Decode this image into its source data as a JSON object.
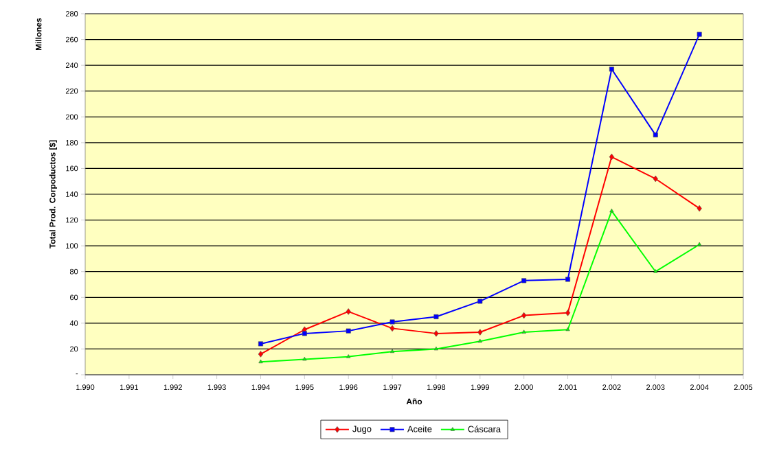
{
  "chart_data": {
    "type": "line",
    "xlabel": "Año",
    "ylabel": "Total Prod. Corpoductos [$]",
    "annotations": [
      "Millones"
    ],
    "x": [
      1994,
      1995,
      1996,
      1997,
      1998,
      1999,
      2000,
      2001,
      2002,
      2003,
      2004
    ],
    "series": [
      {
        "name": "Jugo",
        "color": "#ff0000",
        "marker": "diamond",
        "values": [
          16,
          35,
          49,
          36,
          32,
          33,
          46,
          48,
          169,
          152,
          129
        ]
      },
      {
        "name": "Aceite",
        "color": "#0000ff",
        "marker": "square",
        "values": [
          24,
          32,
          34,
          41,
          45,
          57,
          73,
          74,
          237,
          186,
          264
        ]
      },
      {
        "name": "Cáscara",
        "color": "#00ff00",
        "marker": "triangle",
        "values": [
          10,
          12,
          14,
          18,
          20,
          26,
          33,
          35,
          127,
          80,
          101
        ]
      }
    ],
    "xlim": [
      1990,
      2005
    ],
    "xticks": [
      {
        "value": 1990,
        "label": "1.990"
      },
      {
        "value": 1991,
        "label": "1.991"
      },
      {
        "value": 1992,
        "label": "1.992"
      },
      {
        "value": 1993,
        "label": "1.993"
      },
      {
        "value": 1994,
        "label": "1.994"
      },
      {
        "value": 1995,
        "label": "1.995"
      },
      {
        "value": 1996,
        "label": "1.996"
      },
      {
        "value": 1997,
        "label": "1.997"
      },
      {
        "value": 1998,
        "label": "1.998"
      },
      {
        "value": 1999,
        "label": "1.999"
      },
      {
        "value": 2000,
        "label": "2.000"
      },
      {
        "value": 2001,
        "label": "2.001"
      },
      {
        "value": 2002,
        "label": "2.002"
      },
      {
        "value": 2003,
        "label": "2.003"
      },
      {
        "value": 2004,
        "label": "2.004"
      },
      {
        "value": 2005,
        "label": "2.005"
      }
    ],
    "ylim": [
      0,
      280
    ],
    "yticks": [
      {
        "value": 0,
        "label": "-"
      },
      20,
      40,
      60,
      80,
      100,
      120,
      140,
      160,
      180,
      200,
      220,
      240,
      260,
      280
    ],
    "grid": "y",
    "legend": "bottom",
    "line_style": "solid"
  }
}
